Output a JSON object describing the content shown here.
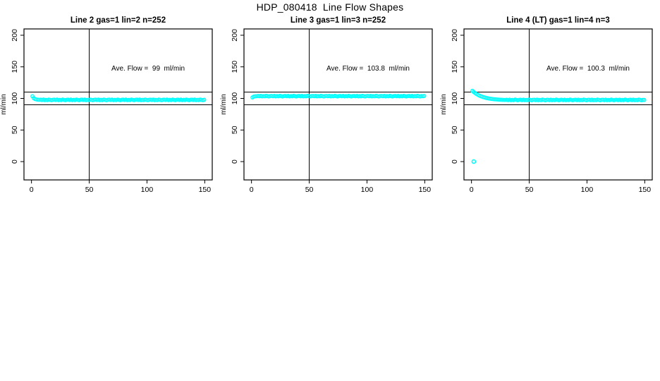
{
  "figure": {
    "title": "HDP_080418  Line Flow Shapes",
    "background": "#ffffff",
    "point_color": "#00ffff",
    "line_color": "#000000",
    "text_color": "#000000"
  },
  "chart_data": [
    {
      "type": "scatter",
      "title": "Line 2 gas=1 lin=2 n=252",
      "annotation": "Ave. Flow =  99  ml/min",
      "ave_flow": 99,
      "ylabel": "ml/min",
      "x_ticks": [
        0,
        50,
        100,
        150
      ],
      "y_ticks": [
        0,
        50,
        100,
        150,
        200
      ],
      "xlim": [
        -6.5,
        156.5
      ],
      "ylim": [
        -29,
        210
      ],
      "hlines": [
        110,
        90
      ],
      "vlines": [
        50
      ],
      "series": {
        "x_start": 0.8,
        "x_step": 1.19,
        "y": [
          103.4,
          100.3,
          99,
          98.3,
          98,
          97.8,
          98,
          97.5,
          98.1,
          97.3,
          97.8,
          97.4,
          98.2,
          97.7,
          97.2,
          97.9,
          98,
          97.5,
          98.1,
          97.3,
          97.8,
          97.4,
          98.2,
          97.7,
          97.2,
          97.9,
          98,
          97.5,
          98.1,
          97.3,
          97.8,
          97.4,
          98.2,
          97.7,
          97.2,
          97.9,
          98,
          97.5,
          98.1,
          97.3,
          97.8,
          97.4,
          98.2,
          97.7,
          97.2,
          97.9,
          98,
          97.5,
          98.1,
          97.3,
          97.8,
          97.4,
          98.2,
          97.7,
          97.2,
          97.9,
          98,
          97.5,
          98.1,
          97.3,
          97.8,
          97.4,
          98.2,
          97.7,
          97.2,
          97.9,
          98,
          97.5,
          98.1,
          97.3,
          97.8,
          97.4,
          98.2,
          97.7,
          97.2,
          97.9,
          98,
          97.5,
          98.1,
          97.3,
          97.8,
          97.4,
          98.2,
          97.7,
          97.2,
          97.9,
          98,
          97.5,
          98.1,
          97.3,
          97.8,
          97.4,
          98.2,
          97.7,
          97.2,
          97.9,
          98,
          97.5,
          98.1,
          97.3,
          97.8,
          97.4,
          98.2,
          97.7,
          97.2,
          97.9,
          98,
          97.5,
          98.1,
          97.3,
          97.8,
          97.4,
          98.2,
          97.7,
          97.2,
          97.9,
          98,
          97.5,
          98.1,
          97.3,
          97.8,
          97.4,
          98.2,
          97.7,
          97.2,
          97.9
        ]
      },
      "extra_points": []
    },
    {
      "type": "scatter",
      "title": "Line 3 gas=1 lin=3 n=252",
      "annotation": "Ave. Flow =  103.8  ml/min",
      "ave_flow": 103.8,
      "ylabel": "ml/min",
      "x_ticks": [
        0,
        50,
        100,
        150
      ],
      "y_ticks": [
        0,
        50,
        100,
        150,
        200
      ],
      "xlim": [
        -6.5,
        156.5
      ],
      "ylim": [
        -29,
        210
      ],
      "hlines": [
        110,
        90
      ],
      "vlines": [
        50
      ],
      "series": {
        "x_start": 0.8,
        "x_step": 1.19,
        "y": [
          101.6,
          102.9,
          103.3,
          103.5,
          103.9,
          103.4,
          104,
          103.2,
          103.7,
          103.3,
          104.1,
          103.6,
          103.1,
          103.8,
          103.9,
          103.4,
          104,
          103.2,
          103.7,
          103.3,
          104.1,
          103.6,
          103.1,
          103.8,
          103.9,
          103.4,
          104,
          103.2,
          103.7,
          103.3,
          104.1,
          103.6,
          103.1,
          103.8,
          103.9,
          103.4,
          104,
          103.2,
          103.7,
          103.3,
          104.1,
          103.6,
          103.1,
          103.8,
          103.9,
          103.4,
          104,
          103.2,
          103.7,
          103.3,
          104.1,
          103.6,
          103.1,
          103.8,
          103.9,
          103.4,
          104,
          103.2,
          103.7,
          103.3,
          104.1,
          103.6,
          103.1,
          103.8,
          103.9,
          103.4,
          104,
          103.2,
          103.7,
          103.3,
          104.1,
          103.6,
          103.1,
          103.8,
          103.9,
          103.4,
          104,
          103.2,
          103.7,
          103.3,
          104.1,
          103.6,
          103.1,
          103.8,
          103.9,
          103.4,
          104,
          103.2,
          103.7,
          103.3,
          104.1,
          103.6,
          103.1,
          103.8,
          103.9,
          103.4,
          104,
          103.2,
          103.7,
          103.3,
          104.1,
          103.6,
          103.1,
          103.8,
          103.9,
          103.4,
          104,
          103.2,
          103.7,
          103.3,
          104.1,
          103.6,
          103.1,
          103.8,
          103.9,
          103.4,
          104,
          103.2,
          103.7,
          103.3,
          104.1,
          103.6,
          103.1,
          103.8,
          103.5,
          103.9
        ]
      },
      "extra_points": []
    },
    {
      "type": "scatter",
      "title": "Line 4 (LT) gas=1 lin=4 n=3",
      "annotation": "Ave. Flow =  100.3  ml/min",
      "ave_flow": 100.3,
      "ylabel": "ml/min",
      "x_ticks": [
        0,
        50,
        100,
        150
      ],
      "y_ticks": [
        0,
        50,
        100,
        150,
        200
      ],
      "xlim": [
        -6.5,
        156.5
      ],
      "ylim": [
        -29,
        210
      ],
      "hlines": [
        110,
        90
      ],
      "vlines": [
        50
      ],
      "series": {
        "x_start": 0.8,
        "x_step": 1.19,
        "y": [
          112,
          110.2,
          108.5,
          107,
          105.7,
          104.6,
          103.6,
          102.8,
          102,
          101.4,
          100.8,
          100.3,
          99.9,
          99.5,
          99.2,
          98.9,
          98.7,
          98.5,
          98.3,
          98.1,
          98,
          97.9,
          97.8,
          97.7,
          97.6,
          97.9,
          97.3,
          98,
          97.2,
          97.7,
          97.3,
          98.1,
          97.6,
          97.1,
          97.8,
          97.9,
          97.3,
          98,
          97.2,
          97.7,
          97.3,
          98.1,
          97.6,
          97.1,
          97.8,
          97.9,
          97.3,
          98,
          97.2,
          97.7,
          97.3,
          98.1,
          97.6,
          97.1,
          97.8,
          97.9,
          97.3,
          98,
          97.2,
          97.7,
          97.3,
          98.1,
          97.6,
          97.1,
          97.8,
          97.9,
          97.3,
          98,
          97.2,
          97.7,
          97.3,
          98.1,
          97.6,
          97.1,
          97.8,
          97.9,
          97.3,
          98,
          97.2,
          97.7,
          97.3,
          98.1,
          97.6,
          97.1,
          97.8,
          97.9,
          97.3,
          98,
          97.2,
          97.7,
          97.3,
          98.1,
          97.6,
          97.1,
          97.8,
          97.9,
          97.3,
          98,
          97.2,
          97.7,
          97.3,
          98.1,
          97.6,
          97.1,
          97.8,
          97.9,
          97.3,
          98,
          97.2,
          97.7,
          97.3,
          98.1,
          97.6,
          97.1,
          97.8,
          97.9,
          97.3,
          98,
          97.2,
          97.7,
          97.3,
          98.1,
          97.6,
          97.1,
          97.8,
          97.5
        ]
      },
      "extra_points": [
        [
          2,
          0
        ]
      ]
    }
  ],
  "layout_hints": {
    "grid": "off",
    "legend": "none",
    "marker": "open-circle"
  }
}
